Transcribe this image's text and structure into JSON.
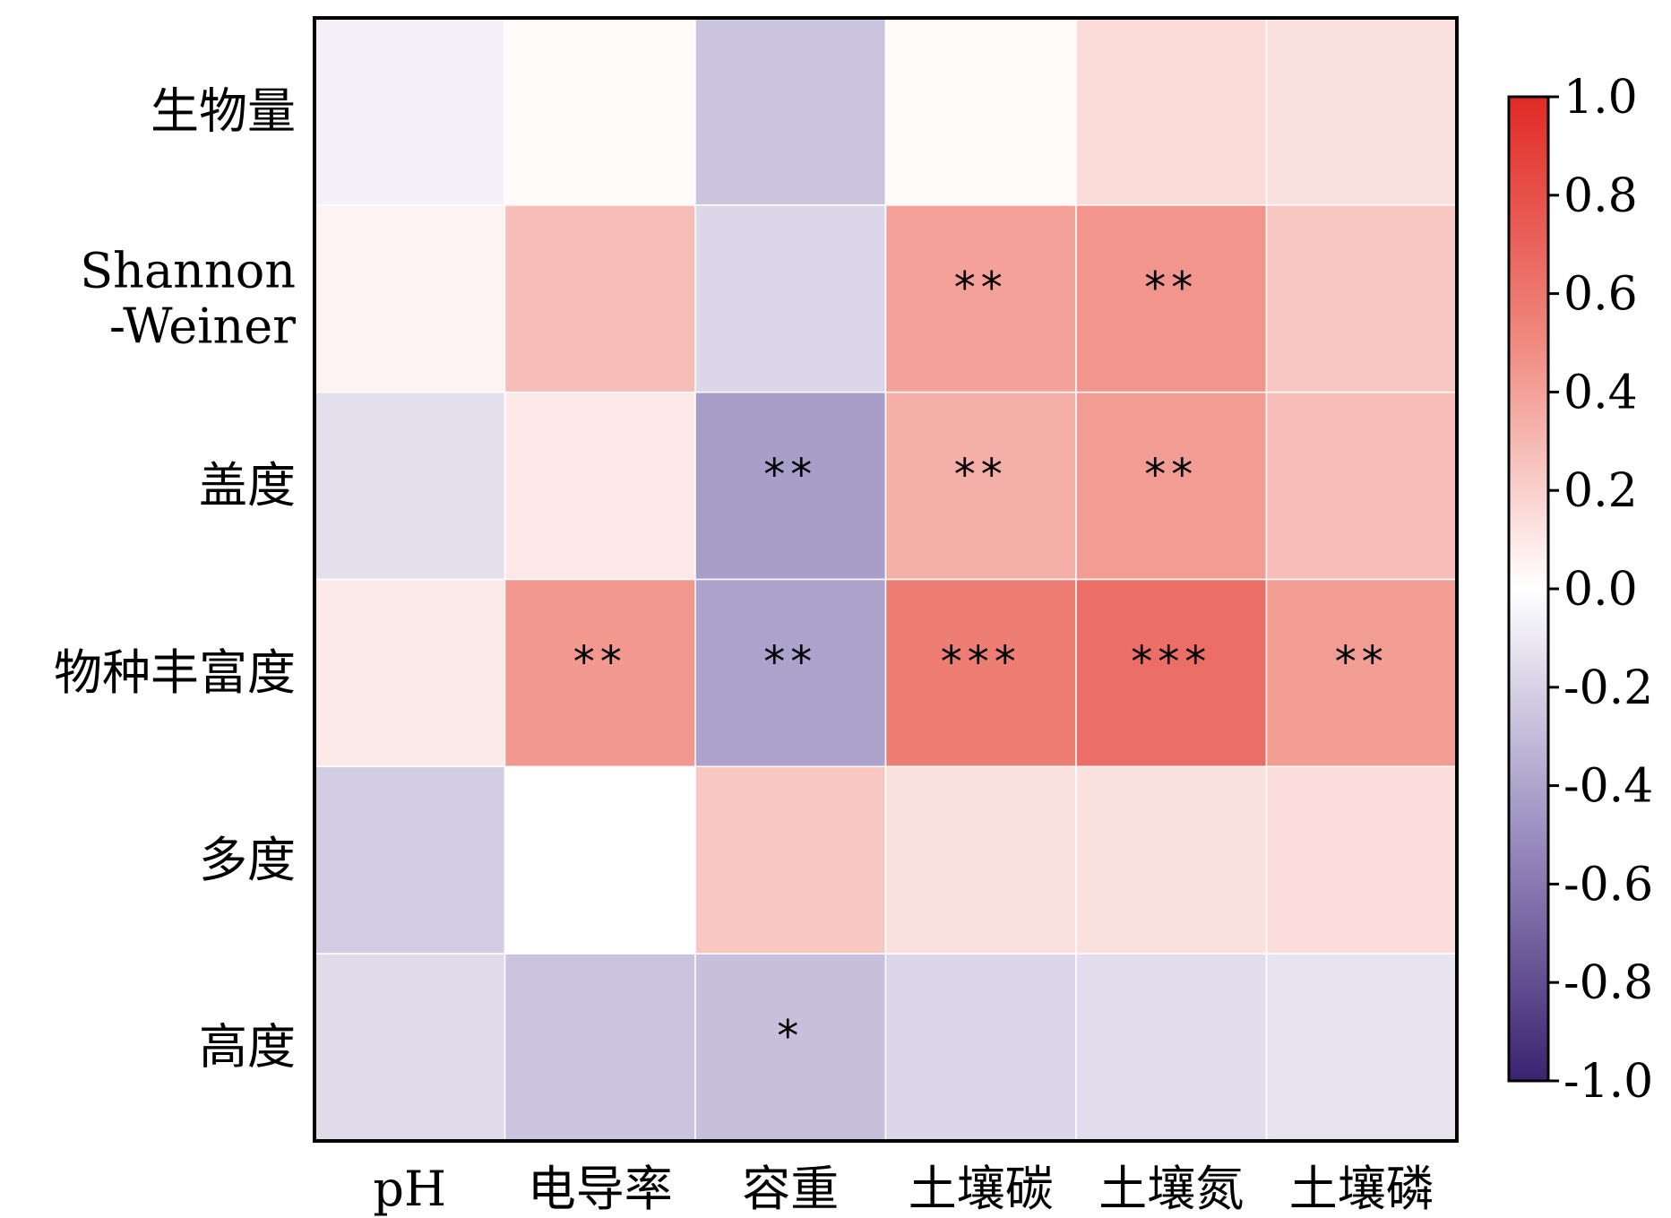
{
  "chart_data": {
    "type": "heatmap",
    "title": "",
    "xlabel": "",
    "ylabel": "",
    "columns": [
      "pH",
      "电导率",
      "容重",
      "土壤碳",
      "土壤氮",
      "土壤磷"
    ],
    "rows": [
      {
        "label_lines": [
          "生物量"
        ]
      },
      {
        "label_lines": [
          "Shannon",
          "-Weiner"
        ]
      },
      {
        "label_lines": [
          "盖度"
        ]
      },
      {
        "label_lines": [
          "物种丰富度"
        ]
      },
      {
        "label_lines": [
          "多度"
        ]
      },
      {
        "label_lines": [
          "高度"
        ]
      }
    ],
    "values": [
      [
        -0.06,
        0.02,
        -0.26,
        0.02,
        0.15,
        0.13
      ],
      [
        0.05,
        0.28,
        -0.18,
        0.4,
        0.45,
        0.24
      ],
      [
        -0.14,
        0.1,
        -0.43,
        0.34,
        0.42,
        0.28
      ],
      [
        0.09,
        0.44,
        -0.41,
        0.57,
        0.64,
        0.42
      ],
      [
        -0.22,
        0.0,
        0.24,
        0.13,
        0.13,
        0.14
      ],
      [
        -0.16,
        -0.26,
        -0.28,
        -0.18,
        -0.15,
        -0.12
      ]
    ],
    "significance": [
      [
        "",
        "",
        "",
        "",
        "",
        ""
      ],
      [
        "",
        "",
        "",
        "**",
        "**",
        ""
      ],
      [
        "",
        "",
        "**",
        "**",
        "**",
        ""
      ],
      [
        "",
        "**",
        "**",
        "***",
        "***",
        "**"
      ],
      [
        "",
        "",
        "",
        "",
        "",
        ""
      ],
      [
        "",
        "",
        "*",
        "",
        "",
        ""
      ]
    ],
    "colorbar": {
      "min": -1.0,
      "max": 1.0,
      "ticks": [
        "1.0",
        "0.8",
        "0.6",
        "0.4",
        "0.2",
        "0.0",
        "-0.2",
        "-0.4",
        "-0.6",
        "-0.8",
        "-1.0"
      ],
      "colors": {
        "negative_end": "#3b2370",
        "mid_negative": "#9b8ec0",
        "zero": "#ffffff",
        "mid_positive": "#f08a80",
        "positive_end": "#e02a25"
      }
    },
    "legend": "right"
  }
}
